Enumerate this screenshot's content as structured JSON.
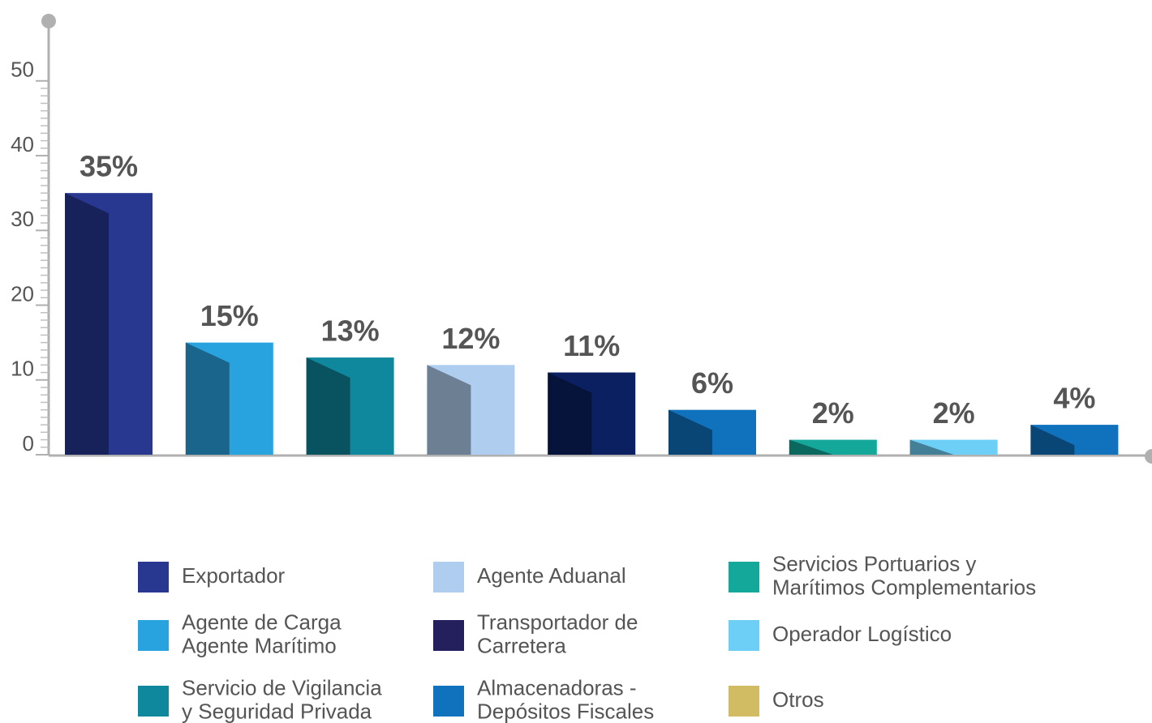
{
  "chart_data": {
    "type": "bar",
    "categories": [
      [
        "Exportador"
      ],
      [
        "Agente de Carga",
        "Agente Marítimo"
      ],
      [
        "Servicio de Vigilancia",
        "y Seguridad Privada"
      ],
      [
        "Agente Aduanal"
      ],
      [
        "Transportador de",
        "Carretera"
      ],
      [
        "Almacenadoras -",
        "Depósitos Fiscales"
      ],
      [
        "Servicios Portuarios y",
        "Marítimos Complementarios"
      ],
      [
        "Operador Logístico"
      ],
      [
        "Otros"
      ]
    ],
    "values": [
      35,
      15,
      13,
      12,
      11,
      6,
      2,
      2,
      4
    ],
    "value_labels": [
      "35%",
      "15%",
      "13%",
      "12%",
      "11%",
      "6%",
      "2%",
      "2%",
      "4%"
    ],
    "colors": [
      "#283891",
      "#29a3e0",
      "#0f879d",
      "#afcdee",
      "#0a2060",
      "#1072bd",
      "#13a89a",
      "#6dcff6",
      "#1072bd"
    ],
    "legend_colors": [
      "#283891",
      "#29a3e0",
      "#0f879d",
      "#afcdee",
      "#241f5d",
      "#1072bd",
      "#13a89a",
      "#6dcff6",
      "#d2bc63"
    ],
    "ylim": [
      0,
      58
    ],
    "yticks": [
      0,
      10,
      20,
      30,
      40,
      50
    ]
  }
}
